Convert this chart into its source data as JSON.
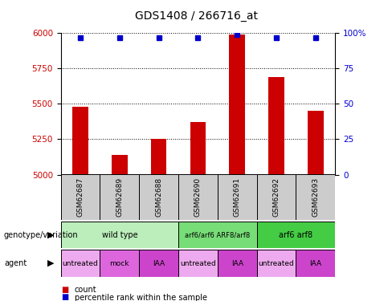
{
  "title": "GDS1408 / 266716_at",
  "samples": [
    "GSM62687",
    "GSM62689",
    "GSM62688",
    "GSM62690",
    "GSM62691",
    "GSM62692",
    "GSM62693"
  ],
  "bar_values": [
    5480,
    5140,
    5250,
    5370,
    5990,
    5690,
    5450
  ],
  "bar_base": 5000,
  "percentile_values": [
    97,
    97,
    97,
    97,
    99,
    97,
    97
  ],
  "ylim_left": [
    5000,
    6000
  ],
  "ylim_right": [
    0,
    100
  ],
  "yticks_left": [
    5000,
    5250,
    5500,
    5750,
    6000
  ],
  "yticks_right": [
    0,
    25,
    50,
    75,
    100
  ],
  "bar_color": "#cc0000",
  "percentile_color": "#0000cc",
  "genotype_row": [
    {
      "label": "wild type",
      "span": [
        0,
        3
      ],
      "color": "#bbeebb"
    },
    {
      "label": "arf6/arf6 ARF8/arf8",
      "span": [
        3,
        5
      ],
      "color": "#77dd77"
    },
    {
      "label": "arf6 arf8",
      "span": [
        5,
        7
      ],
      "color": "#44cc44"
    }
  ],
  "agent_row": [
    {
      "label": "untreated",
      "span": [
        0,
        1
      ],
      "color": "#eeaaee"
    },
    {
      "label": "mock",
      "span": [
        1,
        2
      ],
      "color": "#dd66dd"
    },
    {
      "label": "IAA",
      "span": [
        2,
        3
      ],
      "color": "#cc44cc"
    },
    {
      "label": "untreated",
      "span": [
        3,
        4
      ],
      "color": "#eeaaee"
    },
    {
      "label": "IAA",
      "span": [
        4,
        5
      ],
      "color": "#cc44cc"
    },
    {
      "label": "untreated",
      "span": [
        5,
        6
      ],
      "color": "#eeaaee"
    },
    {
      "label": "IAA",
      "span": [
        6,
        7
      ],
      "color": "#cc44cc"
    }
  ],
  "sample_box_color": "#cccccc",
  "left_tick_color": "#cc0000",
  "right_tick_color": "#0000cc",
  "row_label_genotype": "genotype/variation",
  "row_label_agent": "agent",
  "legend_count_label": "count",
  "legend_pct_label": "percentile rank within the sample"
}
